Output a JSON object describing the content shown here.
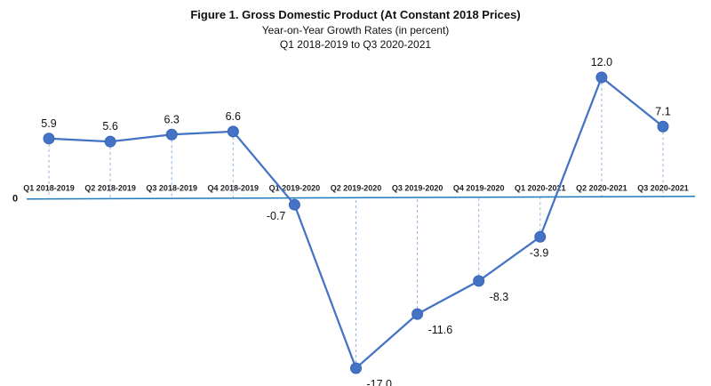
{
  "chart_data": {
    "type": "line",
    "title": "Figure 1. Gross Domestic Product (At Constant 2018 Prices)",
    "subtitle_1": "Year-on-Year Growth Rates (in percent)",
    "subtitle_2": "Q1 2018-2019 to Q3 2020-2021",
    "zero_label": "0",
    "categories": [
      "Q1 2018-2019",
      "Q2 2018-2019",
      "Q3 2018-2019",
      "Q4 2018-2019",
      "Q1 2019-2020",
      "Q2 2019-2020",
      "Q3 2019-2020",
      "Q4 2019-2020",
      "Q1 2020-2021",
      "Q2 2020-2021",
      "Q3 2020-2021"
    ],
    "series": [
      {
        "values": [
          5.9,
          5.6,
          6.3,
          6.6,
          -0.7,
          -17.0,
          -11.6,
          -8.3,
          -3.9,
          12.0,
          7.1
        ],
        "labels": [
          "5.9",
          "5.6",
          "6.3",
          "6.6",
          "-0.7",
          "-17.0",
          "-11.6",
          "-8.3",
          "-3.9",
          "12.0",
          "7.1"
        ]
      }
    ],
    "ylim": [
      -17.0,
      12.0
    ],
    "grid": false,
    "line_color": "#4472c4",
    "axis_color": "#1f7bbd",
    "drop_line_color": "#8fb4e3"
  }
}
